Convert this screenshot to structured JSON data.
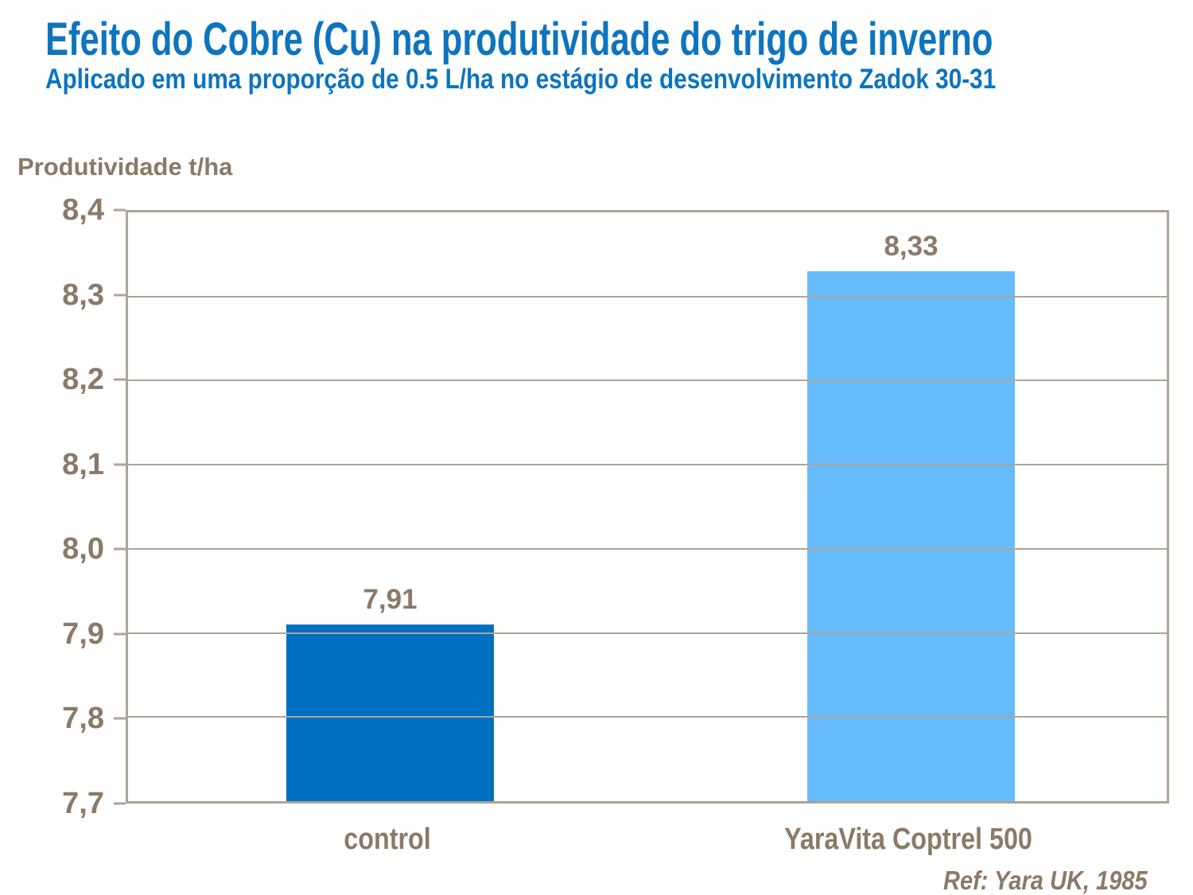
{
  "chart_data": {
    "type": "bar",
    "title": "Efeito do Cobre (Cu) na produtividade do trigo de inverno",
    "subtitle": "Aplicado em uma proporção de 0.5 L/ha no estágio de desenvolvimento Zadok 30-31",
    "ylabel": "Produtividade t/ha",
    "categories": [
      "control",
      "YaraVita Coptrel 500"
    ],
    "values": [
      7.91,
      8.33
    ],
    "value_labels": [
      "7,91",
      "8,33"
    ],
    "ylim": [
      7.7,
      8.4
    ],
    "ytick_step": 0.1,
    "ytick_labels_top_to_bottom": [
      "8,4",
      "8,3",
      "8,2",
      "8,1",
      "8,0",
      "7,9",
      "7,8",
      "7,7"
    ],
    "grid": true,
    "legend": "none",
    "bar_colors": [
      "#0070C0",
      "#66BBFA"
    ],
    "colors": {
      "title_blue": "#0E74BE",
      "label_brown": "#8A7A66",
      "axis_taupe": "#AEA396",
      "background": "#FFFFFF"
    },
    "reference": "Ref: Yara UK, 1985"
  }
}
